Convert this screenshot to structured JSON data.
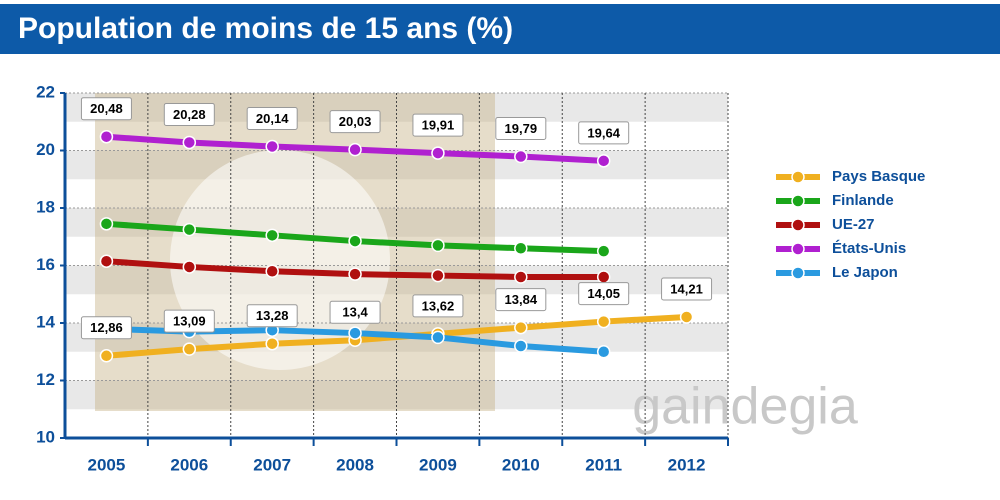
{
  "chart_data": {
    "type": "line",
    "title": "Population de moins de 15 ans (%)",
    "categories": [
      "2005",
      "2006",
      "2007",
      "2008",
      "2009",
      "2010",
      "2011",
      "2012"
    ],
    "ylim": [
      10,
      22
    ],
    "yticks": [
      10,
      12,
      14,
      16,
      18,
      20,
      22
    ],
    "grid": true,
    "legend": "right",
    "watermark": "gaindegia",
    "series": [
      {
        "name": "Pays Basque",
        "color": "#f0b020",
        "values": [
          12.86,
          13.09,
          13.28,
          13.4,
          13.62,
          13.84,
          14.05,
          14.21
        ],
        "value_labels": [
          "12,86",
          "13,09",
          "13,28",
          "13,4",
          "13,62",
          "13,84",
          "14,05",
          "14,21"
        ]
      },
      {
        "name": "Finlande",
        "color": "#1aa61a",
        "values": [
          17.45,
          17.25,
          17.05,
          16.85,
          16.7,
          16.6,
          16.5,
          null
        ]
      },
      {
        "name": "UE-27",
        "color": "#b01010",
        "values": [
          16.15,
          15.95,
          15.8,
          15.7,
          15.65,
          15.6,
          15.6,
          null
        ]
      },
      {
        "name": "États-Unis",
        "color": "#b020d0",
        "values": [
          20.48,
          20.28,
          20.14,
          20.03,
          19.91,
          19.79,
          19.64,
          null
        ],
        "value_labels": [
          "20,48",
          "20,28",
          "20,14",
          "20,03",
          "19,91",
          "19,79",
          "19,64",
          null
        ]
      },
      {
        "name": "Le Japon",
        "color": "#2a9ae0",
        "values": [
          13.8,
          13.7,
          13.75,
          13.65,
          13.5,
          13.2,
          13.0,
          null
        ]
      }
    ]
  }
}
